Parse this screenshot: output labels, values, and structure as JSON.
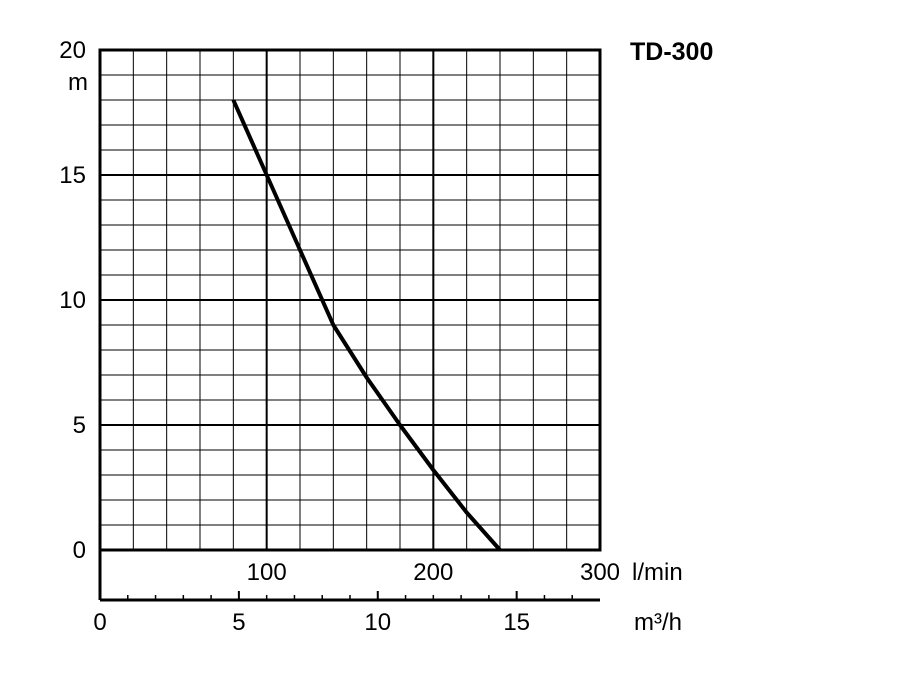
{
  "chart_data": {
    "type": "line",
    "title": "TD-300",
    "y_axis": {
      "unit": "m",
      "range": [
        0,
        20
      ],
      "ticks": [
        0,
        5,
        10,
        15,
        20
      ],
      "tick_labels": [
        "0",
        "5",
        "10",
        "15",
        "20"
      ]
    },
    "x_axis_primary": {
      "unit": "l/min",
      "range": [
        0,
        300
      ],
      "ticks": [
        100,
        200,
        300
      ],
      "tick_labels": [
        "100",
        "200",
        "300"
      ]
    },
    "x_axis_secondary": {
      "unit": "m³/h",
      "range": [
        0,
        18
      ],
      "ticks": [
        0,
        5,
        10,
        15
      ],
      "tick_labels": [
        "0",
        "5",
        "10",
        "15"
      ]
    },
    "grid": true,
    "series": [
      {
        "color": "#000000",
        "x": [
          80,
          100,
          120,
          140,
          160,
          180,
          200,
          220,
          240
        ],
        "y": [
          18,
          15,
          12,
          9,
          6.9,
          5,
          3.2,
          1.5,
          0
        ]
      }
    ]
  }
}
